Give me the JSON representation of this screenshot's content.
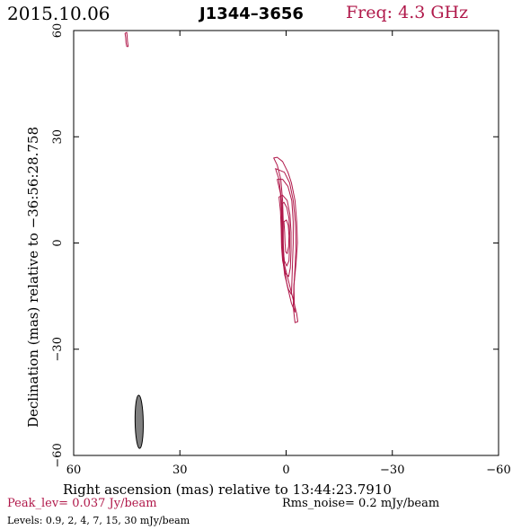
{
  "header": {
    "date": "2015.10.06",
    "source": "J1344–3656",
    "frequency": "Freq: 4.3 GHz"
  },
  "footer": {
    "peak": "Peak_lev=  0.037 Jy/beam",
    "rms": "Rms_noise=  0.2 mJy/beam",
    "levels": "Levels: 0.9,   2,   4,   7,  15,  30 mJy/beam"
  },
  "colors": {
    "contour": "#b0184a",
    "beam_fill": "#808080",
    "text_accent": "#b0184a"
  },
  "chart_data": {
    "type": "contour",
    "xlabel": "Right ascension (mas) relative to 13:44:23.7910",
    "ylabel": "Declination (mas) relative to −36:56:28.758",
    "xlim": [
      60,
      -60
    ],
    "ylim": [
      -60,
      60
    ],
    "xticks": [
      60,
      30,
      0,
      -30,
      -60
    ],
    "yticks": [
      60,
      30,
      0,
      -30,
      -60
    ],
    "xtick_labels": [
      "60",
      "30",
      "0",
      "−30",
      "−60"
    ],
    "ytick_labels": [
      "60",
      "30",
      "0",
      "−30",
      "−60"
    ],
    "contour_levels_mJy": [
      0.9,
      2,
      4,
      7,
      15,
      30
    ],
    "peak_Jy_per_beam": 0.037,
    "rms_mJy_per_beam": 0.2,
    "contours": [
      {
        "level": 0.9,
        "points": [
          [
            3.5,
            24
          ],
          [
            2.5,
            22
          ],
          [
            1.5,
            18
          ],
          [
            1.0,
            12
          ],
          [
            0.8,
            6
          ],
          [
            0.8,
            0
          ],
          [
            0.5,
            -6
          ],
          [
            -1,
            -12
          ],
          [
            -2,
            -16
          ],
          [
            -3,
            -20
          ],
          [
            -3.3,
            -22.2
          ],
          [
            -2.5,
            -22.5
          ],
          [
            -2,
            -18
          ],
          [
            -2.2,
            -12
          ],
          [
            -2.8,
            -6
          ],
          [
            -3.2,
            0
          ],
          [
            -3,
            6
          ],
          [
            -2.5,
            12
          ],
          [
            -1.5,
            17
          ],
          [
            -0.5,
            20
          ],
          [
            1,
            23
          ],
          [
            2.5,
            24.2
          ]
        ]
      },
      {
        "level": 2,
        "points": [
          [
            3,
            21
          ],
          [
            2,
            18
          ],
          [
            1.3,
            12
          ],
          [
            1.1,
            6
          ],
          [
            1,
            0
          ],
          [
            0.7,
            -6
          ],
          [
            -0.3,
            -12
          ],
          [
            -1.5,
            -17
          ],
          [
            -2.5,
            -19.5
          ],
          [
            -2.3,
            -17
          ],
          [
            -2.2,
            -12
          ],
          [
            -2.6,
            -6
          ],
          [
            -2.8,
            0
          ],
          [
            -2.6,
            6
          ],
          [
            -2,
            12
          ],
          [
            -1,
            17
          ],
          [
            0.5,
            20
          ]
        ]
      },
      {
        "level": 4,
        "points": [
          [
            2.5,
            18
          ],
          [
            1.6,
            14
          ],
          [
            1.3,
            8
          ],
          [
            1.2,
            2
          ],
          [
            1,
            -4
          ],
          [
            0.4,
            -9
          ],
          [
            -0.6,
            -13
          ],
          [
            -1.5,
            -14.5
          ],
          [
            -1.6,
            -12
          ],
          [
            -1.8,
            -6
          ],
          [
            -2,
            0
          ],
          [
            -2,
            6
          ],
          [
            -1.6,
            12
          ],
          [
            -0.5,
            16
          ],
          [
            1,
            18
          ]
        ]
      },
      {
        "level": 7,
        "points": [
          [
            2,
            13
          ],
          [
            1.6,
            9
          ],
          [
            1.4,
            4
          ],
          [
            1.3,
            -1
          ],
          [
            1,
            -5
          ],
          [
            0.2,
            -8.5
          ],
          [
            -0.7,
            -9.5
          ],
          [
            -1.2,
            -7
          ],
          [
            -1.4,
            -2
          ],
          [
            -1.4,
            3
          ],
          [
            -1.1,
            8
          ],
          [
            -0.3,
            12
          ],
          [
            1,
            13.5
          ]
        ]
      },
      {
        "level": 15,
        "points": [
          [
            1.2,
            11
          ],
          [
            1.0,
            7
          ],
          [
            0.9,
            2
          ],
          [
            0.8,
            -2
          ],
          [
            0.5,
            -5
          ],
          [
            -0.2,
            -6.5
          ],
          [
            -0.8,
            -5
          ],
          [
            -1.0,
            -1
          ],
          [
            -1.0,
            3
          ],
          [
            -0.8,
            7
          ],
          [
            -0.2,
            10
          ],
          [
            0.6,
            11.5
          ]
        ]
      },
      {
        "level": 30,
        "points": [
          [
            0.6,
            6
          ],
          [
            0.4,
            3
          ],
          [
            0.3,
            0
          ],
          [
            0.1,
            -2.5
          ],
          [
            -0.3,
            -3
          ],
          [
            -0.7,
            -1
          ],
          [
            -0.8,
            2
          ],
          [
            -0.6,
            5
          ],
          [
            -0.1,
            6.5
          ]
        ]
      },
      {
        "level": 0.9,
        "points": [
          [
            45.5,
            59.2
          ],
          [
            45.3,
            58
          ],
          [
            45.2,
            56.5
          ],
          [
            45.0,
            55.5
          ],
          [
            44.6,
            55.5
          ],
          [
            44.8,
            57
          ],
          [
            44.9,
            58.5
          ],
          [
            45.0,
            59.5
          ]
        ]
      }
    ],
    "beam": {
      "center": [
        41.5,
        -50.5
      ],
      "major_mas": 15,
      "minor_mas": 2.3,
      "pa_deg": -1
    }
  }
}
